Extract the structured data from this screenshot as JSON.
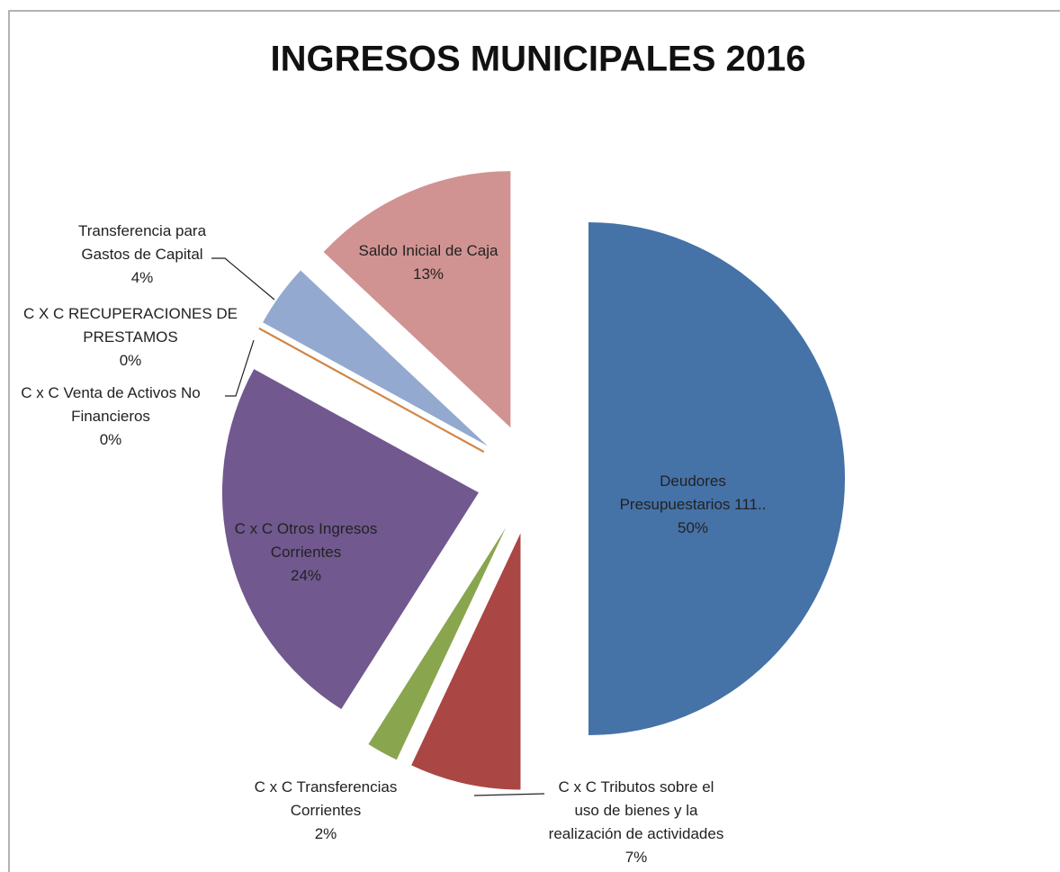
{
  "chart_data": {
    "type": "pie",
    "title": "INGRESOS MUNICIPALES 2016",
    "categories": [
      "Deudores Presupuestarios 111..",
      "C x C Tributos sobre el uso de bienes y la realización de actividades",
      "C x C Transferencias Corrientes",
      "C x C Otros Ingresos Corrientes",
      "C x C Venta de Activos No Financieros",
      "C X C RECUPERACIONES DE PRESTAMOS",
      "Transferencia para Gastos de Capital",
      "Saldo Inicial de Caja"
    ],
    "values": [
      50,
      7,
      2,
      24,
      0,
      0,
      4,
      13
    ],
    "value_labels": [
      "50%",
      "7%",
      "2%",
      "24%",
      "0%",
      "0%",
      "4%",
      "13%"
    ],
    "colors": [
      "#4572a7",
      "#aa4643",
      "#89a54e",
      "#71588f",
      "#4198af",
      "#db843d",
      "#93a9cf",
      "#d09392"
    ]
  }
}
